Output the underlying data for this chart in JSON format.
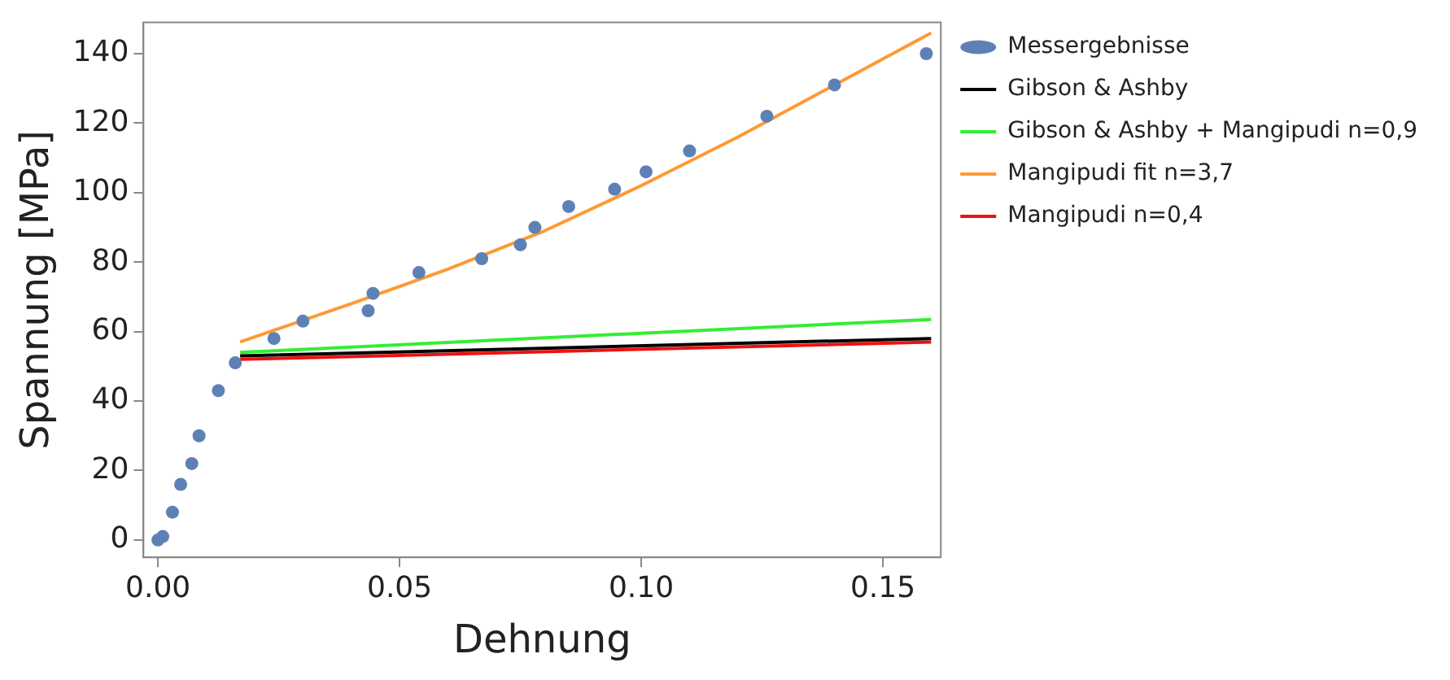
{
  "chart_data": {
    "type": "scatter",
    "xlabel": "Dehnung",
    "ylabel": "Spannung [MPa]",
    "xlim": [
      -0.003,
      0.162
    ],
    "ylim": [
      -5,
      149
    ],
    "xticks": [
      {
        "value": 0,
        "label": "0.00"
      },
      {
        "value": 0.05,
        "label": "0.05"
      },
      {
        "value": 0.1,
        "label": "0.10"
      },
      {
        "value": 0.15,
        "label": "0.15"
      }
    ],
    "yticks": [
      0,
      20,
      40,
      60,
      80,
      100,
      120,
      140
    ],
    "grid": false,
    "legend": "right",
    "series": [
      {
        "name": "Messergebnisse",
        "type": "scatter",
        "marker": "circle",
        "color": "#5e81b5",
        "x": [
          0,
          0.001,
          0.003,
          0.0047,
          0.007,
          0.0085,
          0.0125,
          0.016,
          0.024,
          0.03,
          0.0435,
          0.0445,
          0.054,
          0.067,
          0.075,
          0.078,
          0.085,
          0.0945,
          0.101,
          0.11,
          0.126,
          0.14,
          0.159
        ],
        "values": [
          0,
          1,
          8,
          16,
          22,
          30,
          43,
          51,
          58,
          63,
          66,
          71,
          77,
          81,
          85,
          90,
          96,
          101,
          106,
          112,
          122,
          131,
          140
        ]
      },
      {
        "name": "Gibson & Ashby",
        "type": "line",
        "marker": "none",
        "color": "#000000",
        "x": [
          0.017,
          0.16
        ],
        "values": [
          53,
          58
        ]
      },
      {
        "name": "Gibson & Ashby + Mangipudi n=0,9",
        "type": "line",
        "marker": "none",
        "color": "#33ee33",
        "x": [
          0.017,
          0.16
        ],
        "values": [
          54,
          63.5
        ]
      },
      {
        "name": "Mangipudi fit n=3,7",
        "type": "line",
        "marker": "none",
        "color": "#ff9933",
        "x": [
          0.017,
          0.04,
          0.06,
          0.08,
          0.1,
          0.12,
          0.14,
          0.16
        ],
        "values": [
          57,
          68,
          78,
          89,
          102,
          116,
          131,
          146
        ]
      },
      {
        "name": "Mangipudi n=0,4",
        "type": "line",
        "marker": "none",
        "color": "#ee1111",
        "x": [
          0.017,
          0.16
        ],
        "values": [
          52,
          57
        ]
      }
    ]
  }
}
